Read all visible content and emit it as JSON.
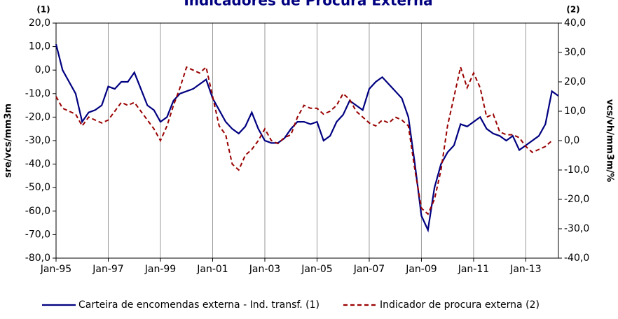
{
  "chart_data": {
    "type": "line",
    "title": "Indicadores de Procura Externa",
    "ylabel": "sre/vcs/mm3m",
    "y2label": "vcs/vh/mm3m/%",
    "y_note": "(1)",
    "y2_note": "(2)",
    "categories": [
      "Jan-95",
      null,
      null,
      null,
      null,
      null,
      null,
      null,
      "Jan-97",
      null,
      null,
      null,
      null,
      null,
      null,
      null,
      "Jan-99",
      null,
      null,
      null,
      null,
      null,
      null,
      null,
      "Jan-01",
      null,
      null,
      null,
      null,
      null,
      null,
      null,
      "Jan-03",
      null,
      null,
      null,
      null,
      null,
      null,
      null,
      "Jan-05",
      null,
      null,
      null,
      null,
      null,
      null,
      null,
      "Jan-07",
      null,
      null,
      null,
      null,
      null,
      null,
      null,
      "Jan-09",
      null,
      null,
      null,
      null,
      null,
      null,
      null,
      "Jan-11",
      null,
      null,
      null,
      null,
      null,
      null,
      null,
      "Jan-13",
      null,
      null,
      null,
      null,
      null
    ],
    "series": [
      {
        "name": "Carteira de encomendas externa - Ind. transf. (1)",
        "color": "#000080",
        "axis": "y",
        "values": [
          11,
          0,
          -5,
          -10,
          -22,
          -18,
          -17,
          -15,
          -7,
          -8,
          -5,
          -5,
          -1,
          -8,
          -15,
          -17,
          -22,
          -20,
          -13,
          -10,
          -9,
          -8,
          -6,
          -4,
          -12,
          -17,
          -22,
          -25,
          -27,
          -24,
          -18,
          -25,
          -30,
          -31,
          -31,
          -29,
          -25,
          -22,
          -22,
          -23,
          -22,
          -30,
          -28,
          -22,
          -19,
          -13,
          -15,
          -17,
          -8,
          -5,
          -3,
          -6,
          -9,
          -12,
          -20,
          -40,
          -62,
          -68,
          -50,
          -40,
          -35,
          -32,
          -23,
          -24,
          -22,
          -20,
          -25,
          -27,
          -28,
          -30,
          -28,
          -34,
          -32,
          -30,
          -28,
          -23,
          -9,
          -11
        ]
      },
      {
        "name": "Indicador de procura externa (2)",
        "color": "#990000",
        "axis": "y2",
        "dashed": true,
        "values": [
          15,
          11,
          10,
          9,
          5,
          8,
          7,
          6,
          7,
          10,
          13,
          12,
          13,
          10,
          7,
          4,
          0,
          5,
          12,
          18,
          25,
          24,
          23,
          25,
          15,
          5,
          2,
          -8,
          -10,
          -5,
          -3,
          0,
          4,
          0,
          -1,
          1,
          2,
          8,
          12,
          11,
          11,
          9,
          10,
          12,
          16,
          14,
          10,
          8,
          6,
          5,
          7,
          6,
          8,
          7,
          5,
          -10,
          -23,
          -25,
          -20,
          -10,
          5,
          15,
          25,
          18,
          23,
          18,
          8,
          9,
          3,
          2,
          2,
          1,
          -2,
          -4,
          -3,
          -2,
          0,
          null
        ]
      }
    ],
    "ylim": [
      -80,
      20
    ],
    "yticks": [
      {
        "value": 20,
        "label": "20,0"
      },
      {
        "value": 10,
        "label": "10,0"
      },
      {
        "value": 0,
        "label": "0,0"
      },
      {
        "value": -10,
        "label": "-10,0"
      },
      {
        "value": -20,
        "label": "-20,0"
      },
      {
        "value": -30,
        "label": "-30,0"
      },
      {
        "value": -40,
        "label": "-40,0"
      },
      {
        "value": -50,
        "label": "-50,0"
      },
      {
        "value": -60,
        "label": "-60,0"
      },
      {
        "value": -70,
        "label": "-70,0"
      },
      {
        "value": -80,
        "label": "-80,0"
      }
    ],
    "y2lim": [
      -40,
      40
    ],
    "y2ticks": [
      {
        "value": 40,
        "label": "40,0"
      },
      {
        "value": 30,
        "label": "30,0"
      },
      {
        "value": 20,
        "label": "20,0"
      },
      {
        "value": 10,
        "label": "10,0"
      },
      {
        "value": 0,
        "label": "0,0"
      },
      {
        "value": -10,
        "label": "-10,0"
      },
      {
        "value": -20,
        "label": "-20,0"
      },
      {
        "value": -30,
        "label": "-30,0"
      },
      {
        "value": -40,
        "label": "-40,0"
      }
    ],
    "grid": "x",
    "legend": "bottom"
  }
}
